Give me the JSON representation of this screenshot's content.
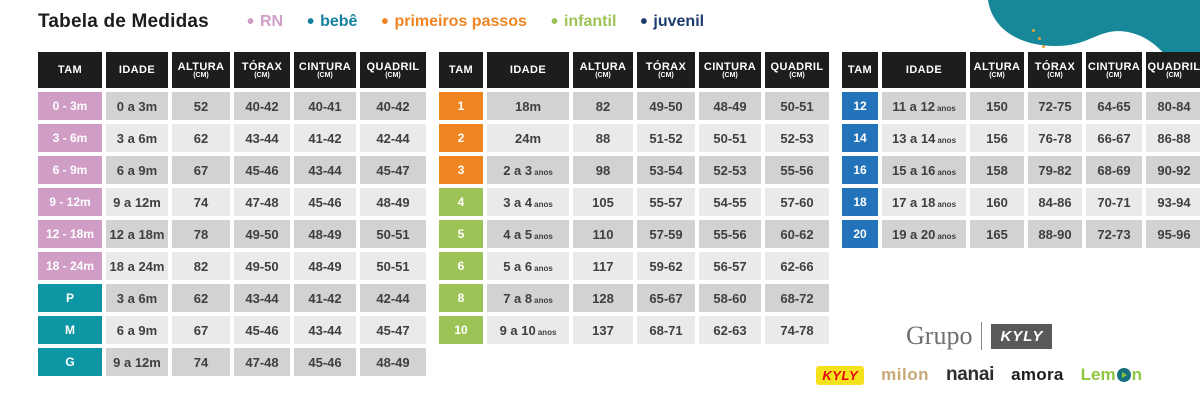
{
  "title": "Tabela de Medidas",
  "legend": [
    {
      "label": "RN",
      "color": "#cf9dc5"
    },
    {
      "label": "bebê",
      "color": "#15809e"
    },
    {
      "label": "primeiros passos",
      "color": "#ef8522"
    },
    {
      "label": "infantil",
      "color": "#9cc355"
    },
    {
      "label": "juvenil",
      "color": "#1d3c6d"
    }
  ],
  "columns": [
    {
      "label": "TAM",
      "sub": ""
    },
    {
      "label": "IDADE",
      "sub": ""
    },
    {
      "label": "ALTURA",
      "sub": "(CM)"
    },
    {
      "label": "TÓRAX",
      "sub": "(CM)"
    },
    {
      "label": "CINTURA",
      "sub": "(CM)"
    },
    {
      "label": "QUADRIL",
      "sub": "(CM)"
    }
  ],
  "colors": {
    "pink": "#cf9dc5",
    "teal": "#0d96a3",
    "orange": "#ef8522",
    "green": "#9cc355",
    "blue": "#2273b9",
    "blob_teal": "#17879a",
    "header_black": "#1d1d1b",
    "cell_dark": "#d2d2d2",
    "cell_light": "#eaeaea"
  },
  "tables": [
    {
      "id": "table-rn-bebe",
      "rows": [
        {
          "tam": "0 - 3m",
          "color": "pink",
          "idade": "0 a 3m",
          "idade_suffix": "",
          "altura": "52",
          "torax": "40-42",
          "cintura": "40-41",
          "quadril": "40-42"
        },
        {
          "tam": "3 - 6m",
          "color": "pink",
          "idade": "3 a 6m",
          "idade_suffix": "",
          "altura": "62",
          "torax": "43-44",
          "cintura": "41-42",
          "quadril": "42-44"
        },
        {
          "tam": "6 - 9m",
          "color": "pink",
          "idade": "6 a 9m",
          "idade_suffix": "",
          "altura": "67",
          "torax": "45-46",
          "cintura": "43-44",
          "quadril": "45-47"
        },
        {
          "tam": "9 - 12m",
          "color": "pink",
          "idade": "9 a 12m",
          "idade_suffix": "",
          "altura": "74",
          "torax": "47-48",
          "cintura": "45-46",
          "quadril": "48-49"
        },
        {
          "tam": "12 - 18m",
          "color": "pink",
          "idade": "12 a 18m",
          "idade_suffix": "",
          "altura": "78",
          "torax": "49-50",
          "cintura": "48-49",
          "quadril": "50-51"
        },
        {
          "tam": "18 - 24m",
          "color": "pink",
          "idade": "18 a 24m",
          "idade_suffix": "",
          "altura": "82",
          "torax": "49-50",
          "cintura": "48-49",
          "quadril": "50-51"
        },
        {
          "tam": "P",
          "color": "teal",
          "idade": "3 a 6m",
          "idade_suffix": "",
          "altura": "62",
          "torax": "43-44",
          "cintura": "41-42",
          "quadril": "42-44"
        },
        {
          "tam": "M",
          "color": "teal",
          "idade": "6 a 9m",
          "idade_suffix": "",
          "altura": "67",
          "torax": "45-46",
          "cintura": "43-44",
          "quadril": "45-47"
        },
        {
          "tam": "G",
          "color": "teal",
          "idade": "9 a 12m",
          "idade_suffix": "",
          "altura": "74",
          "torax": "47-48",
          "cintura": "45-46",
          "quadril": "48-49"
        }
      ]
    },
    {
      "id": "table-primeiros-passos-infantil",
      "rows": [
        {
          "tam": "1",
          "color": "orange",
          "idade": "18m",
          "idade_suffix": "",
          "altura": "82",
          "torax": "49-50",
          "cintura": "48-49",
          "quadril": "50-51"
        },
        {
          "tam": "2",
          "color": "orange",
          "idade": "24m",
          "idade_suffix": "",
          "altura": "88",
          "torax": "51-52",
          "cintura": "50-51",
          "quadril": "52-53"
        },
        {
          "tam": "3",
          "color": "orange",
          "idade": "2 a 3",
          "idade_suffix": "anos",
          "altura": "98",
          "torax": "53-54",
          "cintura": "52-53",
          "quadril": "55-56"
        },
        {
          "tam": "4",
          "color": "green",
          "idade": "3 a 4",
          "idade_suffix": "anos",
          "altura": "105",
          "torax": "55-57",
          "cintura": "54-55",
          "quadril": "57-60"
        },
        {
          "tam": "5",
          "color": "green",
          "idade": "4 a 5",
          "idade_suffix": "anos",
          "altura": "110",
          "torax": "57-59",
          "cintura": "55-56",
          "quadril": "60-62"
        },
        {
          "tam": "6",
          "color": "green",
          "idade": "5 a 6",
          "idade_suffix": "anos",
          "altura": "117",
          "torax": "59-62",
          "cintura": "56-57",
          "quadril": "62-66"
        },
        {
          "tam": "8",
          "color": "green",
          "idade": "7 a 8",
          "idade_suffix": "anos",
          "altura": "128",
          "torax": "65-67",
          "cintura": "58-60",
          "quadril": "68-72"
        },
        {
          "tam": "10",
          "color": "green",
          "idade": "9 a 10",
          "idade_suffix": "anos",
          "altura": "137",
          "torax": "68-71",
          "cintura": "62-63",
          "quadril": "74-78"
        }
      ]
    },
    {
      "id": "table-juvenil",
      "rows": [
        {
          "tam": "12",
          "color": "blue",
          "idade": "11 a 12",
          "idade_suffix": "anos",
          "altura": "150",
          "torax": "72-75",
          "cintura": "64-65",
          "quadril": "80-84"
        },
        {
          "tam": "14",
          "color": "blue",
          "idade": "13 a 14",
          "idade_suffix": "anos",
          "altura": "156",
          "torax": "76-78",
          "cintura": "66-67",
          "quadril": "86-88"
        },
        {
          "tam": "16",
          "color": "blue",
          "idade": "15 a 16",
          "idade_suffix": "anos",
          "altura": "158",
          "torax": "79-82",
          "cintura": "68-69",
          "quadril": "90-92"
        },
        {
          "tam": "18",
          "color": "blue",
          "idade": "17 a 18",
          "idade_suffix": "anos",
          "altura": "160",
          "torax": "84-86",
          "cintura": "70-71",
          "quadril": "93-94"
        },
        {
          "tam": "20",
          "color": "blue",
          "idade": "19 a 20",
          "idade_suffix": "anos",
          "altura": "165",
          "torax": "88-90",
          "cintura": "72-73",
          "quadril": "95-96"
        }
      ]
    }
  ],
  "footer": {
    "group_prefix": "Grupo",
    "group_name": "KYLY",
    "brands": [
      "KYLY",
      "milon",
      "nanai",
      "amora",
      "Lemon"
    ]
  }
}
